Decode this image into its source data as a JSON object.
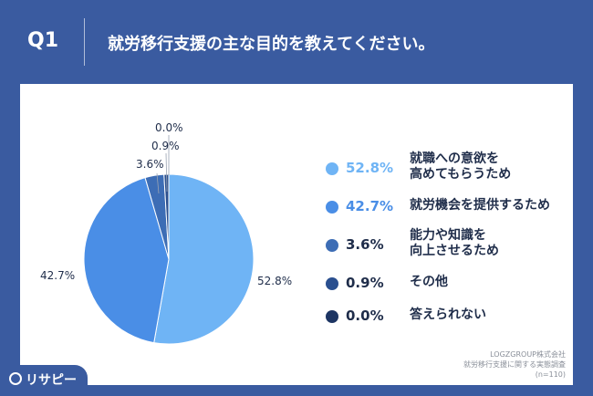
{
  "header": {
    "q_label": "Q1",
    "question": "就労移行支援の主な目的を教えてください。"
  },
  "chart_data": {
    "type": "pie",
    "title": "",
    "categories": [
      "就職への意欲を\n高めてもらうため",
      "就労機会を提供するため",
      "能力や知識を\n向上させるため",
      "その他",
      "答えられない"
    ],
    "values": [
      52.8,
      42.7,
      3.6,
      0.9,
      0.0
    ],
    "value_labels": [
      "52.8%",
      "42.7%",
      "3.6%",
      "0.9%",
      "0.0%"
    ],
    "colors": [
      "#6fb4f5",
      "#4a8ee6",
      "#3d6db5",
      "#2a4f8f",
      "#1d3563"
    ],
    "legend_position": "right"
  },
  "source": {
    "line1": "LOGZGROUP株式会社",
    "line2": "就労移行支援に関する実態調査",
    "line3": "(n=110)"
  },
  "logo": {
    "text": "リサピー"
  }
}
